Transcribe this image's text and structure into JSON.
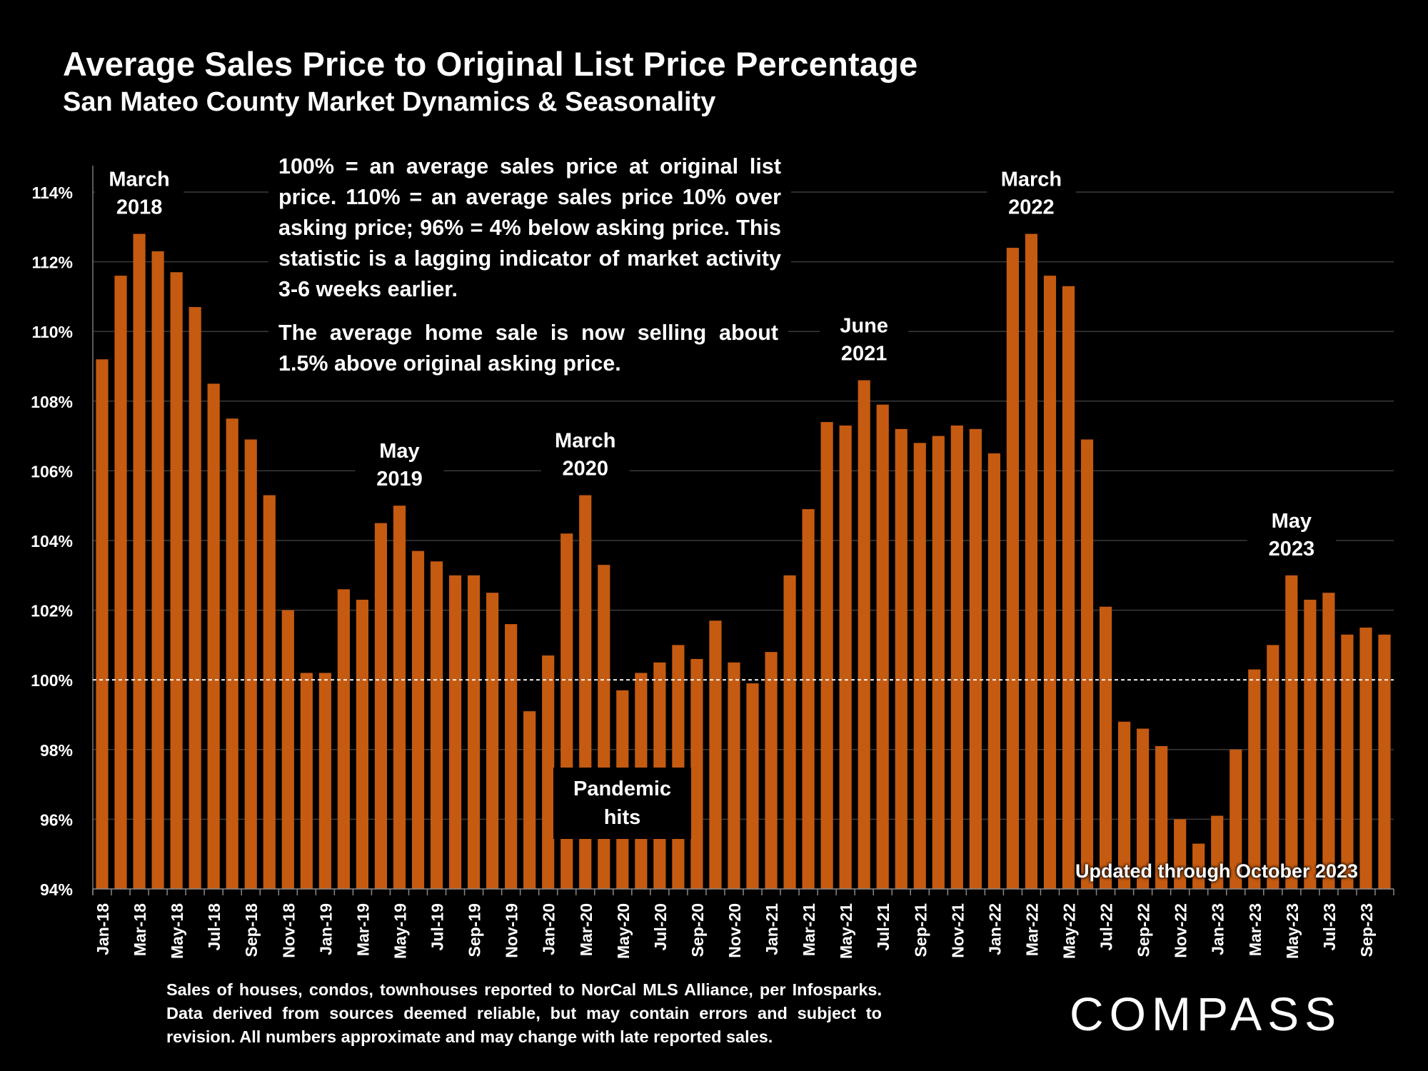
{
  "chart_data": {
    "type": "bar",
    "title": "Average Sales Price to Original List Price Percentage",
    "subtitle": "San Mateo County Market Dynamics & Seasonality",
    "ylim": [
      94,
      114
    ],
    "y_tick_labels": [
      "94%",
      "96%",
      "98%",
      "100%",
      "102%",
      "104%",
      "106%",
      "108%",
      "110%",
      "112%",
      "114%"
    ],
    "y_ticks": [
      94,
      96,
      98,
      100,
      102,
      104,
      106,
      108,
      110,
      112,
      114
    ],
    "reference_line": 100,
    "bar_color": "#C55A11",
    "grid": true,
    "categories": [
      "Jan-18",
      "Feb-18",
      "Mar-18",
      "Apr-18",
      "May-18",
      "Jun-18",
      "Jul-18",
      "Aug-18",
      "Sep-18",
      "Oct-18",
      "Nov-18",
      "Dec-18",
      "Jan-19",
      "Feb-19",
      "Mar-19",
      "Apr-19",
      "May-19",
      "Jun-19",
      "Jul-19",
      "Aug-19",
      "Sep-19",
      "Oct-19",
      "Nov-19",
      "Dec-19",
      "Jan-20",
      "Feb-20",
      "Mar-20",
      "Apr-20",
      "May-20",
      "Jun-20",
      "Jul-20",
      "Aug-20",
      "Sep-20",
      "Oct-20",
      "Nov-20",
      "Dec-20",
      "Jan-21",
      "Feb-21",
      "Mar-21",
      "Apr-21",
      "May-21",
      "Jun-21",
      "Jul-21",
      "Aug-21",
      "Sep-21",
      "Oct-21",
      "Nov-21",
      "Dec-21",
      "Jan-22",
      "Feb-22",
      "Mar-22",
      "Apr-22",
      "May-22",
      "Jun-22",
      "Jul-22",
      "Aug-22",
      "Sep-22",
      "Oct-22",
      "Nov-22",
      "Dec-22",
      "Jan-23",
      "Feb-23",
      "Mar-23",
      "Apr-23",
      "May-23",
      "Jun-23",
      "Jul-23",
      "Aug-23",
      "Sep-23",
      "Oct-23"
    ],
    "x_tick_labels": [
      "Jan-18",
      "Mar-18",
      "May-18",
      "Jul-18",
      "Sep-18",
      "Nov-18",
      "Jan-19",
      "Mar-19",
      "May-19",
      "Jul-19",
      "Sep-19",
      "Nov-19",
      "Jan-20",
      "Mar-20",
      "May-20",
      "Jul-20",
      "Sep-20",
      "Nov-20",
      "Jan-21",
      "Mar-21",
      "May-21",
      "Jul-21",
      "Sep-21",
      "Nov-21",
      "Jan-22",
      "Mar-22",
      "May-22",
      "Jul-22",
      "Sep-22",
      "Nov-22",
      "Jan-23",
      "Mar-23",
      "May-23",
      "Jul-23",
      "Sep-23"
    ],
    "values": [
      109.2,
      111.6,
      112.8,
      112.3,
      111.7,
      110.7,
      108.5,
      107.5,
      106.9,
      105.3,
      102.0,
      100.2,
      100.2,
      102.6,
      102.3,
      104.5,
      105.0,
      103.7,
      103.4,
      103.0,
      103.0,
      102.5,
      101.6,
      99.1,
      100.7,
      104.2,
      105.3,
      103.3,
      99.7,
      100.2,
      100.5,
      101.0,
      100.6,
      101.7,
      100.5,
      99.9,
      100.8,
      103.0,
      104.9,
      107.4,
      107.3,
      108.6,
      107.9,
      107.2,
      106.8,
      107.0,
      107.3,
      107.2,
      106.5,
      112.4,
      112.8,
      111.6,
      111.3,
      106.9,
      102.1,
      98.8,
      98.6,
      98.1,
      96.0,
      95.3,
      96.1,
      98.0,
      100.3,
      101.0,
      103.0,
      102.3,
      102.5,
      101.3,
      101.5,
      101.3
    ],
    "annotations": [
      {
        "label_top": "March",
        "label_bottom": "2018",
        "index": 2
      },
      {
        "label_top": "May",
        "label_bottom": "2019",
        "index": 16
      },
      {
        "label_top": "March",
        "label_bottom": "2020",
        "index": 26
      },
      {
        "label_top": "June",
        "label_bottom": "2021",
        "index": 41
      },
      {
        "label_top": "March",
        "label_bottom": "2022",
        "index": 50
      },
      {
        "label_top": "May",
        "label_bottom": "2023",
        "index": 64
      }
    ]
  },
  "note1": "100% = an average sales price at original list price. 110% = an average sales price 10% over asking price; 96% = 4% below asking price. This statistic is a lagging indicator of market activity 3-6 weeks earlier.",
  "note2": "The average home sale is now selling about 1.5% above original asking price.",
  "pandemic_line1": "Pandemic",
  "pandemic_line2": "hits",
  "updated": "Updated through October 2023",
  "footer": "Sales of houses, condos, townhouses reported to NorCal MLS Alliance, per Infosparks. Data derived from sources deemed reliable, but may contain errors and subject to revision. All numbers approximate and may change with late reported sales.",
  "logo": "COMPASS"
}
